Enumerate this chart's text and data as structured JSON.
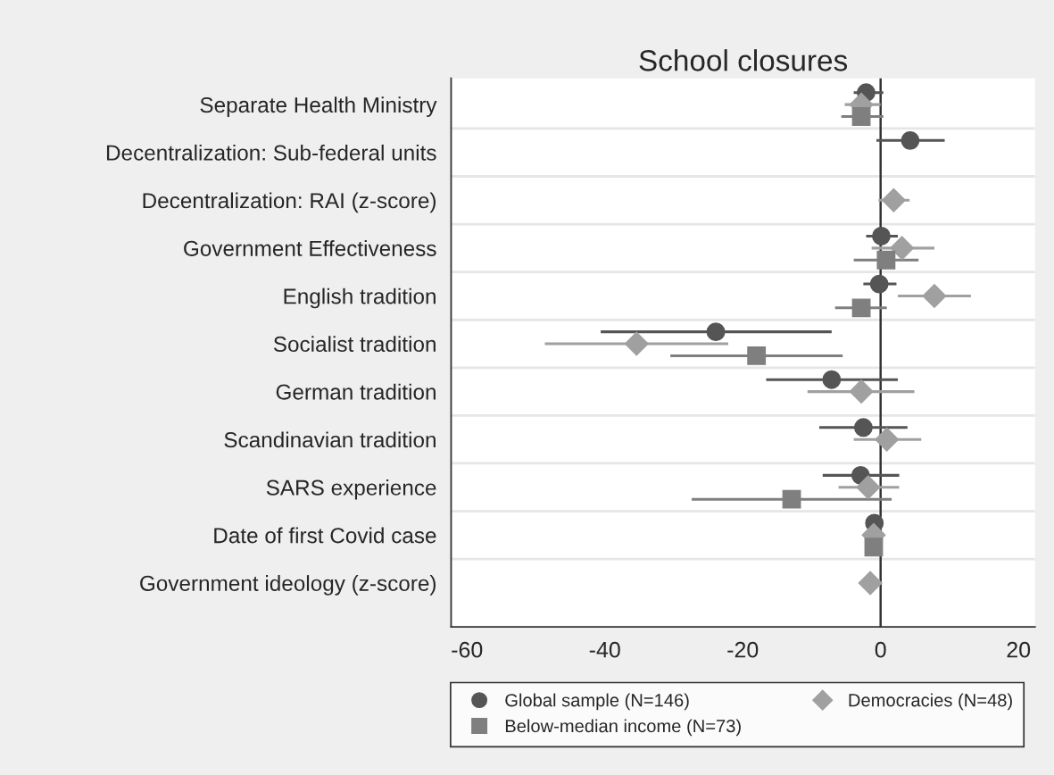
{
  "chart_data": {
    "type": "scatter",
    "orientation": "horizontal",
    "title": "School closures",
    "categories": [
      "Separate Health Ministry",
      "Decentralization: Sub-federal units",
      "Decentralization: RAI (z-score)",
      "Government Effectiveness",
      "English tradition",
      "Socialist tradition",
      "German tradition",
      "Scandinavian tradition",
      "SARS experience",
      "Date of first Covid case",
      "Government ideology (z-score)"
    ],
    "series": [
      {
        "name": "Global sample (N=146)",
        "color": "#555555",
        "marker": "circle",
        "values": [
          -2.1,
          4.3,
          null,
          0.1,
          -0.2,
          -23.9,
          -7.1,
          -2.5,
          -2.9,
          -0.9,
          null
        ],
        "errors": [
          [
            -3.9,
            0.4
          ],
          [
            -0.6,
            9.3
          ],
          null,
          [
            -2.1,
            2.5
          ],
          [
            -2.5,
            2.3
          ],
          [
            -40.6,
            -7.1
          ],
          [
            -16.6,
            2.5
          ],
          [
            -8.9,
            3.9
          ],
          [
            -8.4,
            2.7
          ],
          null,
          null
        ]
      },
      {
        "name": "Democracies (N=48)",
        "color": "#a0a0a0",
        "marker": "diamond",
        "values": [
          -2.8,
          null,
          1.9,
          3.1,
          7.8,
          -35.4,
          -2.8,
          0.9,
          -1.8,
          -1.0,
          -1.5
        ],
        "errors": [
          [
            -5.2,
            0.0
          ],
          null,
          [
            -0.3,
            4.2
          ],
          [
            -1.3,
            7.8
          ],
          [
            2.5,
            13.1
          ],
          [
            -48.7,
            -22.1
          ],
          [
            -10.6,
            4.9
          ],
          [
            -3.9,
            5.9
          ],
          [
            -6.1,
            2.7
          ],
          null,
          null
        ]
      },
      {
        "name": "Below-median income (N=73)",
        "color": "#7f7f7f",
        "marker": "square",
        "values": [
          -2.8,
          null,
          null,
          0.8,
          -2.8,
          -18.0,
          null,
          null,
          -12.9,
          -1.0,
          null
        ],
        "errors": [
          [
            -5.7,
            0.4
          ],
          null,
          null,
          [
            -3.9,
            5.5
          ],
          [
            -6.6,
            0.9
          ],
          [
            -30.5,
            -5.5
          ],
          null,
          null,
          [
            -27.4,
            1.6
          ],
          null,
          null
        ]
      }
    ],
    "xlim": [
      -62.3,
      22.4
    ],
    "xticks": [
      -60,
      -40,
      -20,
      0,
      20
    ],
    "ref_lines": [
      {
        "axis": "x",
        "value": 0,
        "color": "#333333"
      }
    ],
    "grid": "y",
    "legend": "bottom"
  }
}
